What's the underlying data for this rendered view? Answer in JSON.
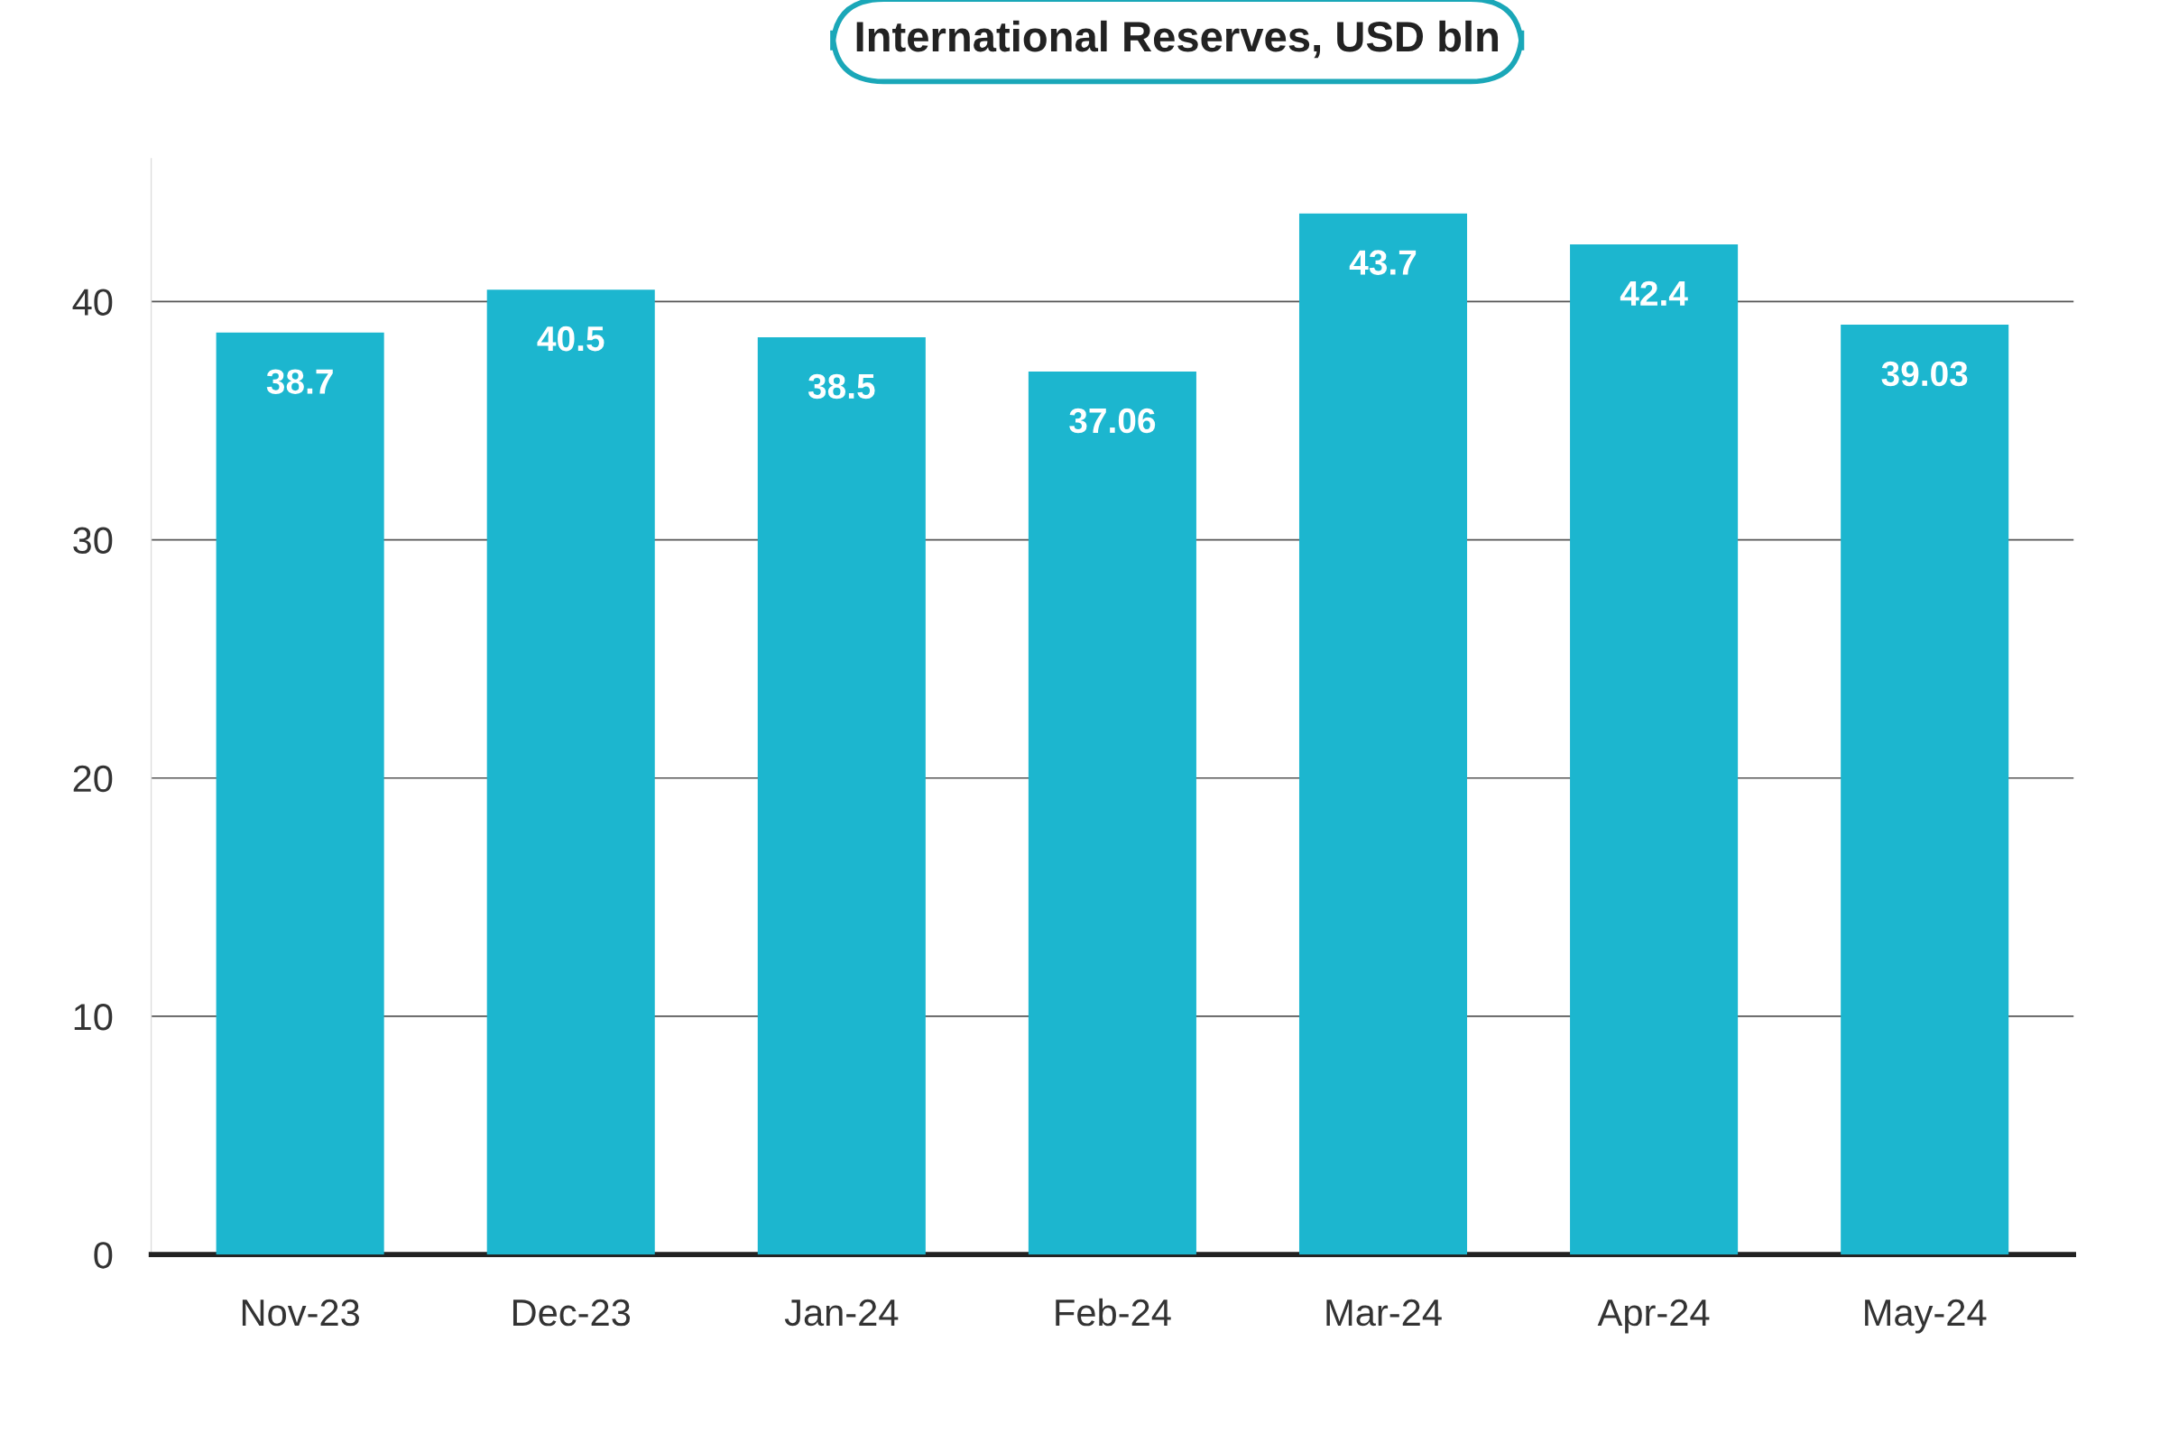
{
  "chart_data": {
    "type": "bar",
    "title": "International Reserves, USD bln",
    "categories": [
      "Nov-23",
      "Dec-23",
      "Jan-24",
      "Feb-24",
      "Mar-24",
      "Apr-24",
      "May-24"
    ],
    "values": [
      38.7,
      40.5,
      38.5,
      37.06,
      43.7,
      42.4,
      39.03
    ],
    "color": "#1cb6cf",
    "ylim": [
      0,
      46
    ],
    "yticks": [
      0,
      10,
      20,
      30,
      40
    ],
    "grid": "y",
    "data_labels": true
  }
}
